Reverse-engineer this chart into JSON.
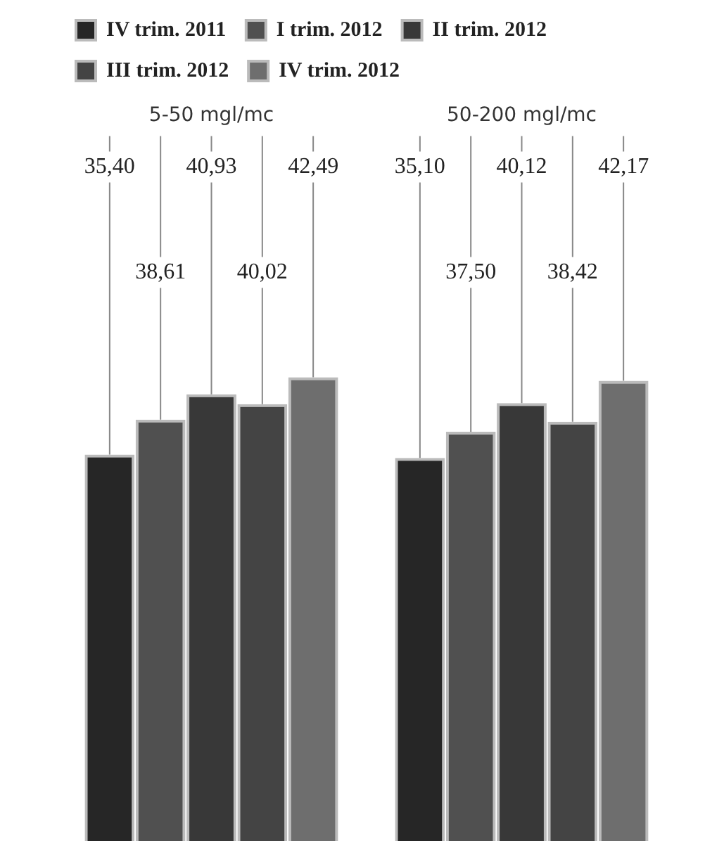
{
  "chart_data": {
    "type": "bar",
    "categories": [
      "5-50 mgl/mc",
      "50-200 mgl/mc"
    ],
    "series": [
      {
        "name": "IV trim. 2011",
        "color": "#262626",
        "values": [
          35.4,
          35.1
        ],
        "value_labels": [
          "35,40",
          "35,10"
        ]
      },
      {
        "name": "I trim. 2012",
        "color": "#505050",
        "values": [
          38.61,
          37.5
        ],
        "value_labels": [
          "38,61",
          "37,50"
        ]
      },
      {
        "name": "II trim. 2012",
        "color": "#383838",
        "values": [
          40.93,
          40.12
        ],
        "value_labels": [
          "40,93",
          "40,12"
        ]
      },
      {
        "name": "III trim. 2012",
        "color": "#444444",
        "values": [
          40.02,
          38.42
        ],
        "value_labels": [
          "40,02",
          "38,42"
        ]
      },
      {
        "name": "IV trim. 2012",
        "color": "#6e6e6e",
        "values": [
          42.49,
          42.17
        ],
        "value_labels": [
          "42,49",
          "42,17"
        ]
      }
    ],
    "legend": "top left",
    "grid": false
  }
}
